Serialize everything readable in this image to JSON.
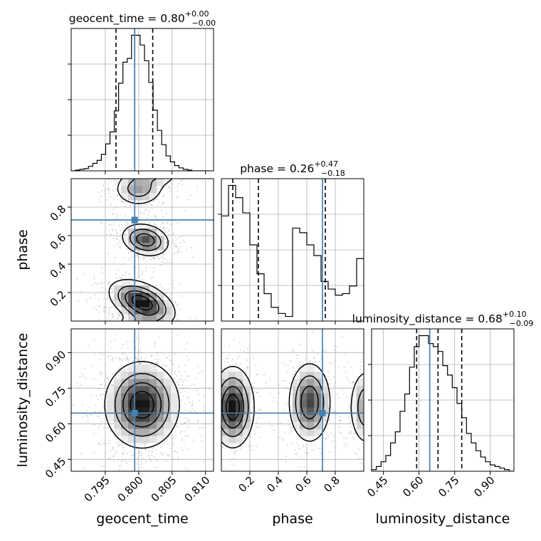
{
  "chart_data": {
    "type": "corner",
    "parameters": [
      {
        "name": "geocent_time",
        "label": "geocent_time",
        "title": "geocent_time = 0.80",
        "title_plus": "+0.00",
        "title_minus": "−0.00",
        "range": [
          0.7899,
          0.8112
        ],
        "ticks": [
          0.795,
          0.8,
          0.805,
          0.81
        ],
        "tick_labels": [
          "0.795",
          "0.800",
          "0.805",
          "0.810"
        ],
        "truth": 0.7994,
        "quantiles": [
          0.7966,
          0.7994,
          0.8021
        ],
        "histogram": {
          "edges": [
            0.7899,
            0.790545,
            0.79119,
            0.791835,
            0.79248,
            0.793125,
            0.79377,
            0.794415,
            0.79506,
            0.795705,
            0.79635,
            0.796995,
            0.79764,
            0.798285,
            0.79893,
            0.799575,
            0.80022,
            0.800865,
            0.80151,
            0.802155,
            0.8028,
            0.803445,
            0.80409,
            0.804735,
            0.80538,
            0.806025,
            0.80667,
            0.807315,
            0.80796,
            0.808605,
            0.80925,
            0.809895,
            0.81054
          ],
          "counts": [
            0,
            1,
            2,
            3,
            6,
            10,
            14,
            22,
            36,
            52,
            80,
            117,
            145,
            150,
            181,
            181,
            168,
            147,
            118,
            81,
            54,
            35,
            20,
            12,
            7,
            4,
            2,
            1,
            0,
            0,
            0,
            0
          ]
        }
      },
      {
        "name": "phase",
        "label": "phase",
        "title": "phase = 0.26",
        "title_plus": "+0.47",
        "title_minus": "−0.18",
        "range": [
          0.0,
          1.0
        ],
        "ticks": [
          0.2,
          0.4,
          0.6,
          0.8
        ],
        "tick_labels": [
          "0.2",
          "0.4",
          "0.6",
          "0.8"
        ],
        "truth": 0.71,
        "quantiles": [
          0.08,
          0.26,
          0.73
        ],
        "histogram": {
          "edges": [
            0.0,
            0.05,
            0.1,
            0.15,
            0.2,
            0.25,
            0.3,
            0.35,
            0.4,
            0.45,
            0.5,
            0.55,
            0.6,
            0.65,
            0.7,
            0.75,
            0.8,
            0.85,
            0.9,
            0.95,
            1.0
          ],
          "counts": [
            69,
            89,
            81,
            71,
            50,
            31,
            18,
            9,
            5,
            3,
            61,
            58,
            50,
            43,
            26,
            21,
            17,
            18,
            23,
            41
          ]
        }
      },
      {
        "name": "luminosity_distance",
        "label": "luminosity_distance",
        "title": "luminosity_distance = 0.68",
        "title_plus": "+0.10",
        "title_minus": "−0.09",
        "range": [
          0.4,
          1.0
        ],
        "ticks": [
          0.45,
          0.6,
          0.75,
          0.9
        ],
        "tick_labels": [
          "0.45",
          "0.60",
          "0.75",
          "0.90"
        ],
        "truth": 0.645,
        "quantiles": [
          0.59,
          0.68,
          0.78
        ],
        "histogram": {
          "edges": [
            0.4,
            0.42,
            0.44,
            0.46,
            0.48,
            0.5,
            0.52,
            0.54,
            0.56,
            0.58,
            0.6,
            0.62,
            0.64,
            0.66,
            0.68,
            0.7,
            0.72,
            0.74,
            0.76,
            0.78,
            0.8,
            0.82,
            0.84,
            0.86,
            0.88,
            0.9,
            0.92,
            0.94,
            0.96,
            0.98,
            1.0
          ],
          "counts": [
            1,
            3,
            6,
            10,
            18,
            25,
            38,
            49,
            66,
            79,
            86,
            86,
            81,
            79,
            76,
            67,
            61,
            53,
            43,
            34,
            24,
            18,
            13,
            9,
            6,
            4,
            3,
            2,
            1,
            0
          ]
        }
      }
    ],
    "pairs": [
      {
        "x_param": "geocent_time",
        "y_param": "phase",
        "density_modes": [
          {
            "cx": 0.8005,
            "cy": 0.13,
            "sx": 0.0023,
            "sy": 0.075,
            "rho": -0.45,
            "weight": 1.0
          },
          {
            "cx": 0.801,
            "cy": 0.57,
            "sx": 0.0017,
            "sy": 0.055,
            "rho": -0.2,
            "weight": 0.75
          },
          {
            "cx": 0.8,
            "cy": 0.93,
            "sx": 0.0018,
            "sy": 0.06,
            "rho": 0.0,
            "weight": 0.45
          }
        ],
        "y_periodic": true
      },
      {
        "x_param": "geocent_time",
        "y_param": "luminosity_distance",
        "density_modes": [
          {
            "cx": 0.8005,
            "cy": 0.68,
            "sx": 0.0026,
            "sy": 0.085,
            "rho": 0.0,
            "weight": 1.0
          }
        ],
        "y_periodic": false
      },
      {
        "x_param": "phase",
        "y_param": "luminosity_distance",
        "density_modes": [
          {
            "cx": 0.08,
            "cy": 0.67,
            "sx": 0.07,
            "sy": 0.08,
            "rho": 0.0,
            "weight": 1.0
          },
          {
            "cx": 0.62,
            "cy": 0.69,
            "sx": 0.07,
            "sy": 0.08,
            "rho": 0.0,
            "weight": 0.8
          },
          {
            "cx": 1.02,
            "cy": 0.67,
            "sx": 0.06,
            "sy": 0.08,
            "rho": 0.0,
            "weight": 0.5
          }
        ],
        "y_periodic": false
      }
    ],
    "truth_color": "#4682b4",
    "grid": true
  }
}
